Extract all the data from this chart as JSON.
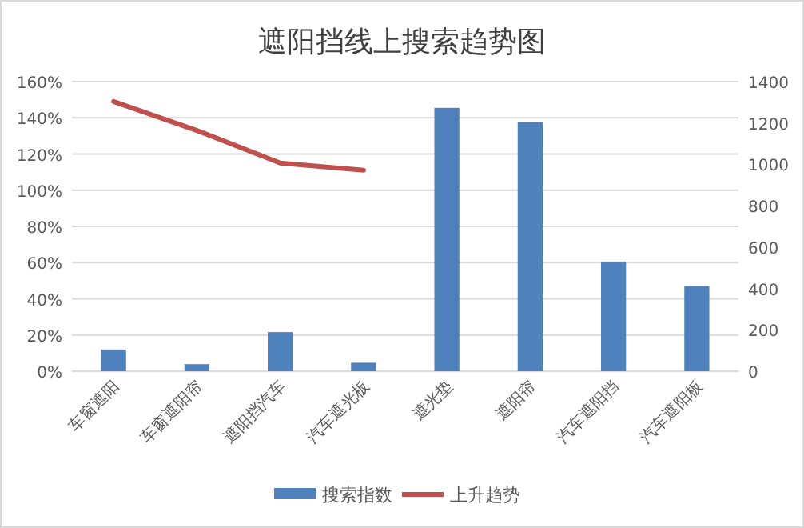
{
  "chart_data": {
    "type": "bar",
    "title": "遮阳挡线上搜索趋势图",
    "categories": [
      "车窗遮阳",
      "车窗遮阳帘",
      "遮阳挡汽车",
      "汽车遮光板",
      "遮光垫",
      "遮阳帘",
      "汽车遮阳挡",
      "汽车遮阳板"
    ],
    "series": [
      {
        "name": "搜索指数",
        "axis": "y2",
        "color": "#4f81bd",
        "values": [
          105,
          34,
          189,
          41,
          1273,
          1204,
          530,
          413
        ]
      },
      {
        "name": "上升趋势",
        "type": "line",
        "axis": "y",
        "color": "#c0504d",
        "values": [
          149,
          133,
          115,
          111,
          null,
          null,
          null,
          null
        ]
      }
    ],
    "ylim": [
      0,
      160
    ],
    "yticks": [
      {
        "value": 0,
        "label": "0%"
      },
      {
        "value": 20,
        "label": "20%"
      },
      {
        "value": 40,
        "label": "40%"
      },
      {
        "value": 60,
        "label": "60%"
      },
      {
        "value": 80,
        "label": "80%"
      },
      {
        "value": 100,
        "label": "100%"
      },
      {
        "value": 120,
        "label": "120%"
      },
      {
        "value": 140,
        "label": "140%"
      },
      {
        "value": 160,
        "label": "160%"
      }
    ],
    "y2lim": [
      0,
      1400
    ],
    "y2ticks": [
      0,
      200,
      400,
      600,
      800,
      1000,
      1200,
      1400
    ],
    "grid": "y",
    "legend": "bottom"
  }
}
